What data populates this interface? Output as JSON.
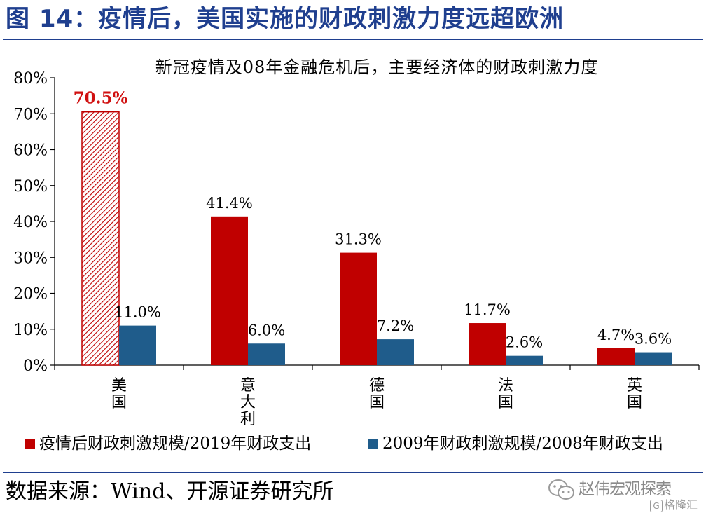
{
  "figure_title": "图 14：疫情后，美国实施的财政刺激力度远超欧洲",
  "source_text": "数据来源：Wind、开源证券研究所",
  "watermark": {
    "text": "赵伟宏观探索",
    "badge_letter": "G",
    "badge_text": "格隆汇"
  },
  "colors": {
    "title_blue": "#1f3f8f",
    "series_red": "#c00000",
    "series_blue": "#1f5c8b",
    "highlight_label": "#d01010"
  },
  "chart_data": {
    "type": "bar",
    "title": "新冠疫情及08年金融危机后，主要经济体的财政刺激力度",
    "categories": [
      "美\n国",
      "意\n大\n利",
      "德\n国",
      "法\n国",
      "英\n国"
    ],
    "series": [
      {
        "name": "疫情后财政刺激规模/2019年财政支出",
        "values": [
          70.5,
          41.4,
          31.3,
          11.7,
          4.7
        ],
        "labels": [
          "70.5%",
          "41.4%",
          "31.3%",
          "11.7%",
          "4.7%"
        ],
        "color": "#c00000"
      },
      {
        "name": "2009年财政刺激规模/2008年财政支出",
        "values": [
          11.0,
          6.0,
          7.2,
          2.6,
          3.6
        ],
        "labels": [
          "11.0%",
          "6.0%",
          "7.2%",
          "2.6%",
          "3.6%"
        ],
        "color": "#1f5c8b"
      }
    ],
    "highlight": {
      "series": 0,
      "category": 0,
      "style": "hatched"
    },
    "ylim": [
      0,
      80
    ],
    "yticks": [
      0,
      10,
      20,
      30,
      40,
      50,
      60,
      70,
      80
    ],
    "ytick_labels": [
      "0%",
      "10%",
      "20%",
      "30%",
      "40%",
      "50%",
      "60%",
      "70%",
      "80%"
    ],
    "legend_position": "bottom",
    "grid": false
  }
}
